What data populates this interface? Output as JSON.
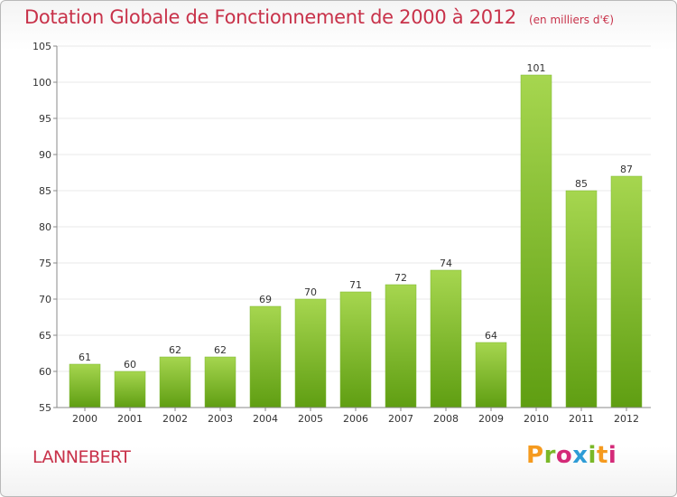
{
  "title": "Dotation Globale de Fonctionnement de 2000 à 2012",
  "subtitle": "(en milliers d'€)",
  "commune": "LANNEBERT",
  "logo": {
    "text": "Proxiti",
    "colors": [
      "#f59a1e",
      "#7ab828",
      "#d42a78",
      "#2e9cd6",
      "#7ab828",
      "#f59a1e",
      "#d42a78"
    ]
  },
  "colors": {
    "bar_light": "#a6d64f",
    "bar_dark": "#5f9e12",
    "title": "#c8324a",
    "grid": "#e8e8e8"
  },
  "chart_data": {
    "type": "bar",
    "title": "Dotation Globale de Fonctionnement de 2000 à 2012",
    "subtitle": "(en milliers d'€)",
    "xlabel": "",
    "ylabel": "",
    "categories": [
      "2000",
      "2001",
      "2002",
      "2003",
      "2004",
      "2005",
      "2006",
      "2007",
      "2008",
      "2009",
      "2010",
      "2011",
      "2012"
    ],
    "values": [
      61,
      60,
      62,
      62,
      69,
      70,
      71,
      72,
      74,
      64,
      101,
      85,
      87
    ],
    "ylim": [
      55,
      105
    ],
    "yticks": [
      55,
      60,
      65,
      70,
      75,
      80,
      85,
      90,
      95,
      100,
      105
    ],
    "grid": true,
    "data_labels": true
  }
}
